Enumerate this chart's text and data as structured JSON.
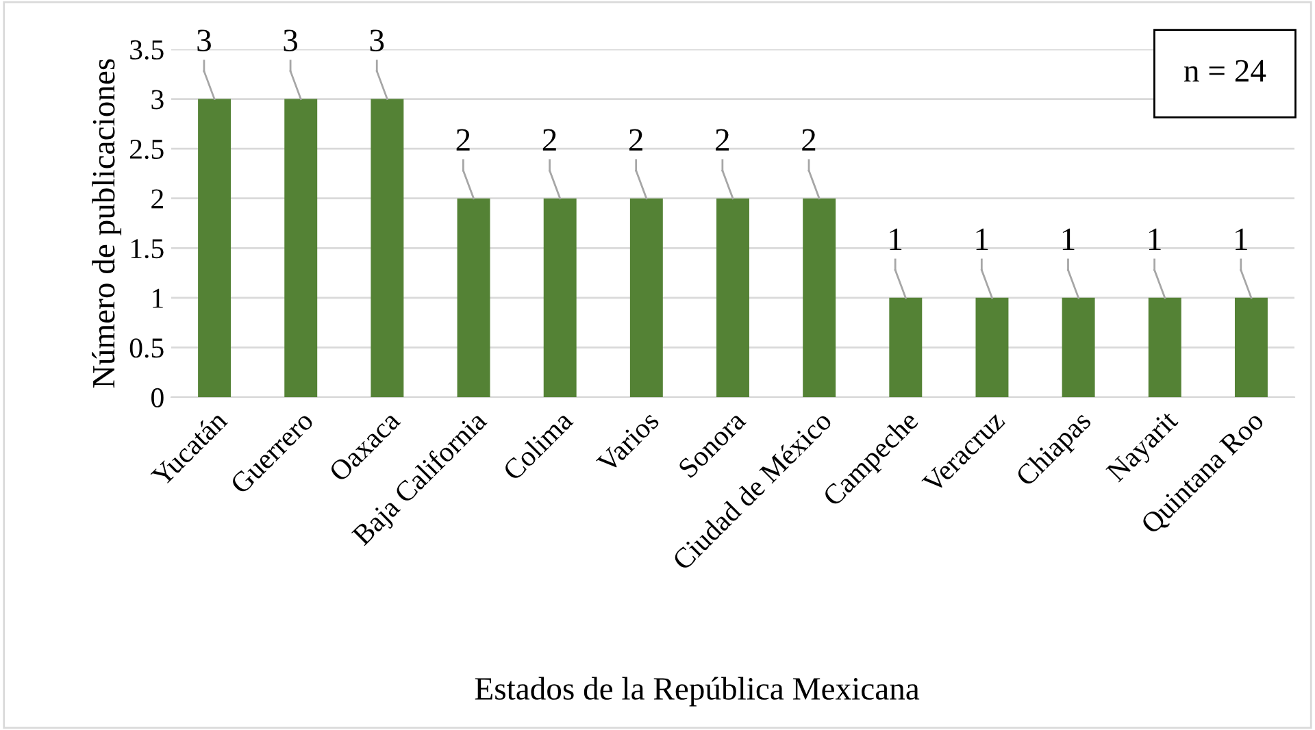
{
  "chart_data": {
    "type": "bar",
    "xlabel": "Estados de la República Mexicana",
    "ylabel": "Número de publicaciones",
    "categories": [
      "Yucatán",
      "Guerrero",
      "Oaxaca",
      "Baja California",
      "Colima",
      "Varios",
      "Sonora",
      "Ciudad de México",
      "Campeche",
      "Veracruz",
      "Chiapas",
      "Nayarit",
      "Quintana Roo"
    ],
    "values": [
      3,
      3,
      3,
      2,
      2,
      2,
      2,
      2,
      1,
      1,
      1,
      1,
      1
    ],
    "color": "#548235",
    "ylim": [
      0,
      3.5
    ],
    "yticks": [
      0,
      0.5,
      1,
      1.5,
      2,
      2.5,
      3,
      3.5
    ],
    "grid": "y",
    "data_labels": true,
    "annotations": [
      "n = 24"
    ]
  }
}
